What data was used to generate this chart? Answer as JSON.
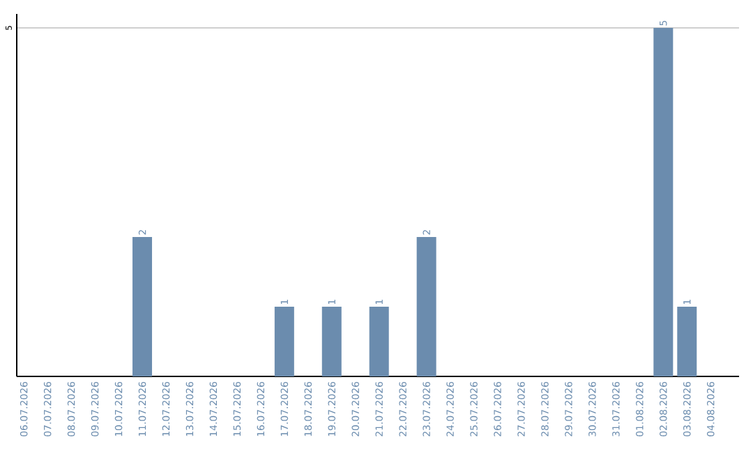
{
  "chart_data": {
    "type": "bar",
    "categories": [
      "06.07.2026",
      "07.07.2026",
      "08.07.2026",
      "09.07.2026",
      "10.07.2026",
      "11.07.2026",
      "12.07.2026",
      "13.07.2026",
      "14.07.2026",
      "15.07.2026",
      "16.07.2026",
      "17.07.2026",
      "18.07.2026",
      "19.07.2026",
      "20.07.2026",
      "21.07.2026",
      "22.07.2026",
      "23.07.2026",
      "24.07.2026",
      "25.07.2026",
      "26.07.2026",
      "27.07.2026",
      "28.07.2026",
      "29.07.2026",
      "30.07.2026",
      "31.07.2026",
      "01.08.2026",
      "02.08.2026",
      "03.08.2026",
      "04.08.2026"
    ],
    "values": [
      null,
      null,
      null,
      null,
      null,
      2,
      null,
      null,
      null,
      null,
      null,
      1,
      null,
      1,
      null,
      1,
      null,
      2,
      null,
      null,
      null,
      null,
      null,
      null,
      null,
      null,
      null,
      5,
      1,
      null
    ],
    "color": "#6b8cae",
    "ylim": [
      0,
      5.2
    ],
    "yticks": [
      5
    ],
    "grid": "y",
    "data_labels": true
  }
}
